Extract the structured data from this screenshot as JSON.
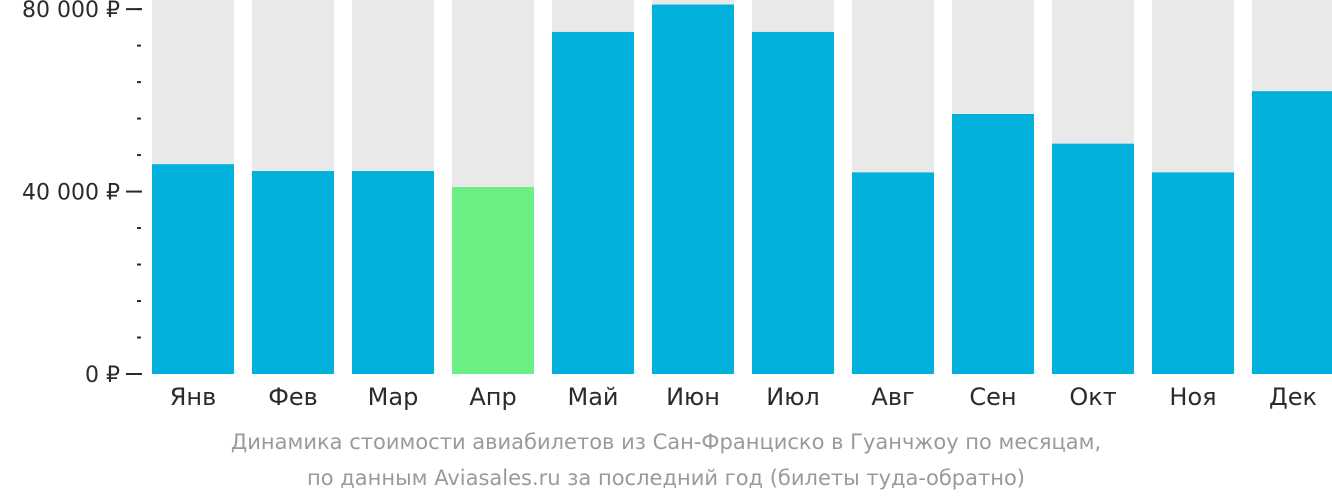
{
  "chart_data": {
    "type": "bar",
    "categories": [
      "Янв",
      "Фев",
      "Мар",
      "Апр",
      "Май",
      "Июн",
      "Июл",
      "Авг",
      "Сен",
      "Окт",
      "Ноя",
      "Дек"
    ],
    "values": [
      46000,
      44500,
      44500,
      41000,
      75000,
      81000,
      75000,
      44200,
      57000,
      50500,
      44200,
      62000
    ],
    "ylim": [
      0,
      82000
    ],
    "y_ticks": [
      {
        "value": 0,
        "label": "0 ₽"
      },
      {
        "value": 40000,
        "label": "40 000 ₽"
      },
      {
        "value": 80000,
        "label": "80 000 ₽"
      }
    ],
    "minor_tick_step": 8000,
    "highlight_index": 3,
    "colors": {
      "bar": "#02b0dc",
      "highlight": "#6cf085",
      "background_bar": "#e9e9e9",
      "axis": "#2b2b2b"
    }
  },
  "caption": {
    "line1": "Динамика стоимости авиабилетов из Сан-Франциско в Гуанчжоу по месяцам,",
    "line2": "по данным Aviasales.ru за последний год (билеты туда-обратно)"
  }
}
